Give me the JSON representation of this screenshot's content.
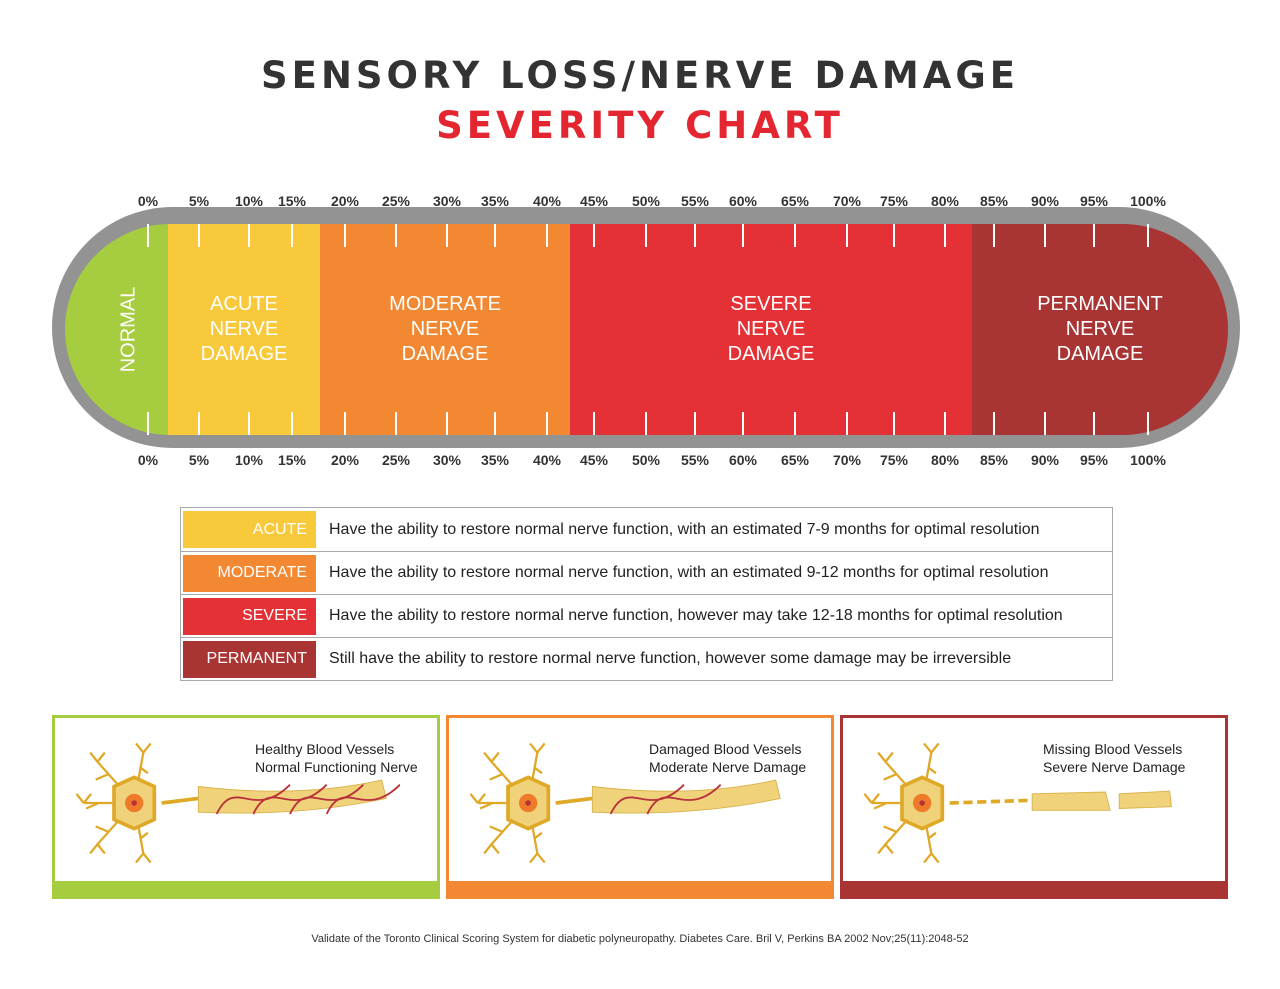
{
  "title": "SENSORY LOSS/NERVE DAMAGE",
  "subtitle": "SEVERITY CHART",
  "ticks": [
    "0%",
    "5%",
    "10%",
    "15%",
    "20%",
    "25%",
    "30%",
    "35%",
    "40%",
    "45%",
    "50%",
    "55%",
    "60%",
    "65%",
    "70%",
    "75%",
    "80%",
    "85%",
    "90%",
    "95%",
    "100%"
  ],
  "segments": [
    {
      "label": "NORMAL",
      "color": "#a5cd3f"
    },
    {
      "label": "ACUTE\nNERVE\nDAMAGE",
      "color": "#f9c93c"
    },
    {
      "label": "MODERATE\nNERVE\nDAMAGE",
      "color": "#f28832"
    },
    {
      "label": "SEVERE\nNERVE\nDAMAGE",
      "color": "#e43136"
    },
    {
      "label": "PERMANENT\nNERVE\nDAMAGE",
      "color": "#a93434"
    }
  ],
  "legend": [
    {
      "label": "ACUTE",
      "color": "#f9c93c",
      "text": "Have the ability to restore normal nerve function, with an estimated 7-9 months for optimal resolution"
    },
    {
      "label": "MODERATE",
      "color": "#f28832",
      "text": "Have the ability to restore normal nerve function, with an estimated 9-12 months for optimal resolution"
    },
    {
      "label": "SEVERE",
      "color": "#e43136",
      "text": "Have the ability to restore normal nerve function, however may take 12-18 months for optimal resolution"
    },
    {
      "label": "PERMANENT",
      "color": "#a93434",
      "text": "Still have the ability to restore normal nerve function, however some damage may be irreversible"
    }
  ],
  "panels": [
    {
      "line1": "Healthy Blood Vessels",
      "line2": "Normal Functioning Nerve",
      "color": "#a5cd3f"
    },
    {
      "line1": "Damaged Blood Vessels",
      "line2": "Moderate Nerve Damage",
      "color": "#f28832"
    },
    {
      "line1": "Missing Blood Vessels",
      "line2": "Severe Nerve Damage",
      "color": "#a93434"
    }
  ],
  "citation": "Validate of the Toronto Clinical Scoring System for diabetic polyneuropathy. Diabetes Care. Bril V, Perkins BA 2002 Nov;25(11):2048-52"
}
